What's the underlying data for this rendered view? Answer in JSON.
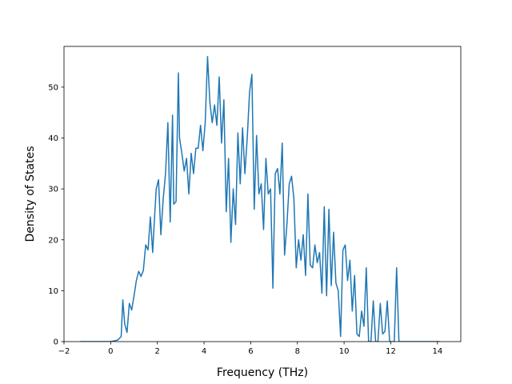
{
  "chart_data": {
    "type": "line",
    "title": "",
    "xlabel": "Frequency (THz)",
    "ylabel": "Density of States",
    "xlim": [
      -2.0,
      15.0
    ],
    "ylim": [
      0,
      58
    ],
    "xticks": [
      -2,
      0,
      2,
      4,
      6,
      8,
      10,
      12,
      14
    ],
    "xtick_labels": [
      "−2",
      "0",
      "2",
      "4",
      "6",
      "8",
      "10",
      "12",
      "14"
    ],
    "yticks": [
      0,
      10,
      20,
      30,
      40,
      50
    ],
    "ytick_labels": [
      "0",
      "10",
      "20",
      "30",
      "40",
      "50"
    ],
    "grid": false,
    "legend": null,
    "series": [
      {
        "color": "#1f77b4",
        "x": [
          -1.3,
          -0.5,
          0.0,
          0.3,
          0.45,
          0.52,
          0.6,
          0.7,
          0.8,
          0.9,
          1.0,
          1.1,
          1.2,
          1.3,
          1.4,
          1.5,
          1.6,
          1.7,
          1.8,
          1.85,
          1.95,
          2.05,
          2.15,
          2.25,
          2.35,
          2.45,
          2.55,
          2.65,
          2.7,
          2.8,
          2.9,
          2.95,
          3.05,
          3.15,
          3.25,
          3.35,
          3.45,
          3.55,
          3.65,
          3.75,
          3.85,
          3.95,
          4.05,
          4.15,
          4.25,
          4.35,
          4.45,
          4.55,
          4.65,
          4.75,
          4.85,
          4.95,
          5.05,
          5.15,
          5.25,
          5.35,
          5.45,
          5.55,
          5.65,
          5.75,
          5.85,
          5.95,
          6.05,
          6.15,
          6.25,
          6.35,
          6.45,
          6.55,
          6.65,
          6.75,
          6.85,
          6.95,
          7.05,
          7.15,
          7.25,
          7.35,
          7.45,
          7.55,
          7.65,
          7.75,
          7.85,
          7.95,
          8.05,
          8.15,
          8.25,
          8.35,
          8.45,
          8.55,
          8.65,
          8.75,
          8.85,
          8.95,
          9.05,
          9.15,
          9.25,
          9.35,
          9.45,
          9.55,
          9.65,
          9.75,
          9.85,
          9.95,
          10.05,
          10.15,
          10.25,
          10.35,
          10.45,
          10.55,
          10.65,
          10.75,
          10.85,
          10.95,
          11.05,
          11.15,
          11.25,
          11.35,
          11.45,
          11.55,
          11.65,
          11.75,
          11.85,
          11.95,
          12.05,
          12.15,
          12.25,
          12.35,
          12.45,
          12.55,
          12.65,
          12.75,
          12.85,
          12.95,
          13.05,
          14.1
        ],
        "y": [
          0,
          0,
          0,
          0.3,
          1.0,
          8.2,
          3.5,
          1.8,
          7.5,
          6.2,
          9.0,
          12.0,
          13.8,
          12.8,
          14.0,
          19.0,
          18.0,
          24.5,
          17.5,
          22.0,
          30.0,
          31.8,
          21.0,
          28.0,
          33.0,
          43.0,
          23.5,
          44.5,
          27.0,
          27.5,
          52.8,
          40.0,
          37.0,
          33.5,
          36.0,
          29.0,
          37.0,
          33.0,
          38.0,
          38.0,
          42.5,
          37.5,
          43.0,
          56.0,
          47.0,
          43.0,
          46.5,
          42.5,
          52.0,
          39.0,
          47.5,
          25.5,
          36.0,
          19.5,
          30.0,
          23.0,
          41.0,
          31.0,
          42.0,
          33.0,
          40.0,
          49.0,
          52.5,
          26.0,
          40.5,
          29.0,
          31.0,
          22.0,
          36.0,
          29.0,
          30.0,
          10.5,
          33.0,
          34.0,
          29.0,
          39.0,
          17.0,
          23.0,
          31.0,
          32.5,
          28.0,
          14.5,
          20.0,
          16.0,
          21.0,
          13.0,
          29.0,
          15.0,
          14.5,
          19.0,
          15.5,
          17.5,
          9.5,
          26.5,
          9.0,
          26.0,
          11.0,
          21.5,
          11.5,
          10.0,
          1.0,
          18.0,
          19.0,
          12.0,
          16.0,
          6.0,
          13.0,
          1.5,
          1.0,
          6.0,
          3.0,
          14.5,
          0,
          0,
          8.0,
          0,
          0,
          7.5,
          1.5,
          2.0,
          8.0,
          0,
          0,
          0,
          14.5,
          0,
          0,
          0,
          0,
          0,
          0,
          0,
          0,
          0
        ]
      }
    ]
  }
}
